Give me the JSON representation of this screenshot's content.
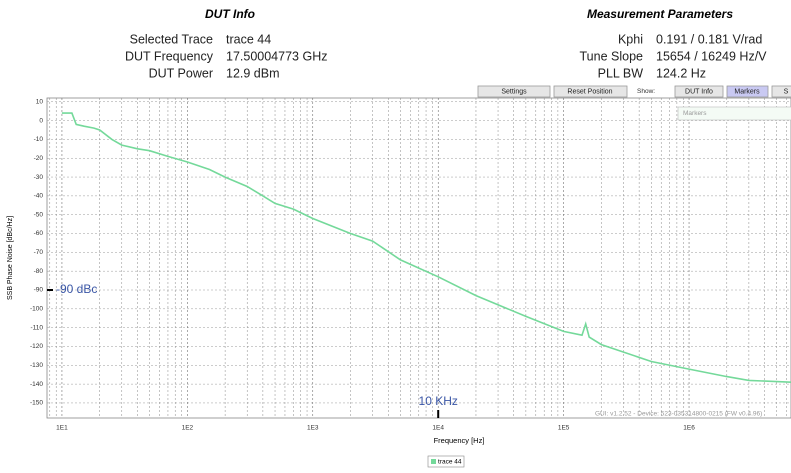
{
  "dut_info": {
    "title": "DUT Info",
    "rows": [
      [
        "Selected Trace",
        "trace 44"
      ],
      [
        "DUT Frequency",
        "17.50004773 GHz"
      ],
      [
        "DUT Power",
        "12.9 dBm"
      ]
    ]
  },
  "measurement": {
    "title": "Measurement Parameters",
    "rows": [
      [
        "Kphi",
        "0.191 / 0.181 V/rad"
      ],
      [
        "Tune Slope",
        "15654 / 16249 Hz/V"
      ],
      [
        "PLL BW",
        "124.2 Hz"
      ]
    ]
  },
  "toolbar": {
    "settings": "Settings",
    "reset": "Reset Position",
    "show": "Show:",
    "dut_info": "DUT Info",
    "markers": "Markers",
    "more": "S"
  },
  "markers_panel": "Markers",
  "footer": "GUI: v1.2.52 - Device: 523-035314800-0215 (FW v0.4.96)",
  "chart_data": {
    "type": "line",
    "xlabel": "Frequency [Hz]",
    "ylabel": "SSB Phase Noise [dBc/Hz]",
    "log_x": true,
    "grid": true,
    "xlim": [
      7.6,
      6500000
    ],
    "ylim": [
      -158,
      12
    ],
    "xticks": [
      {
        "value": 10,
        "label": "1E1"
      },
      {
        "value": 100,
        "label": "1E2"
      },
      {
        "value": 1000,
        "label": "1E3"
      },
      {
        "value": 10000,
        "label": "1E4"
      },
      {
        "value": 100000,
        "label": "1E5"
      },
      {
        "value": 1000000,
        "label": "1E6"
      }
    ],
    "yticks": [
      -150,
      -140,
      -130,
      -120,
      -110,
      -100,
      -90,
      -80,
      -70,
      -60,
      -50,
      -40,
      -30,
      -20,
      -10,
      0,
      10
    ],
    "x": [
      10,
      12,
      13,
      15,
      18,
      20,
      25,
      30,
      40,
      50,
      70,
      100,
      150,
      200,
      300,
      400,
      500,
      700,
      1000,
      2000,
      3000,
      5000,
      10000,
      20000,
      50000,
      100000,
      140000,
      150000,
      160000,
      200000,
      500000,
      1000000,
      2000000,
      3000000,
      6500000
    ],
    "series": [
      {
        "name": "trace 44",
        "color": "#74d99a",
        "values": [
          4,
          4,
          -2,
          -3,
          -4,
          -5,
          -10,
          -13,
          -15,
          -16,
          -19,
          -22,
          -26,
          -30,
          -35,
          -40,
          -44,
          -47,
          -52,
          -60,
          -64,
          -74,
          -83,
          -93,
          -104,
          -112,
          -114,
          -108,
          -115,
          -119,
          -128,
          -132,
          -136,
          -138,
          -139
        ]
      }
    ],
    "annotations": [
      {
        "text": "-90 dBc",
        "y": -90
      },
      {
        "text": "10 KHz",
        "x": 10000
      }
    ]
  }
}
